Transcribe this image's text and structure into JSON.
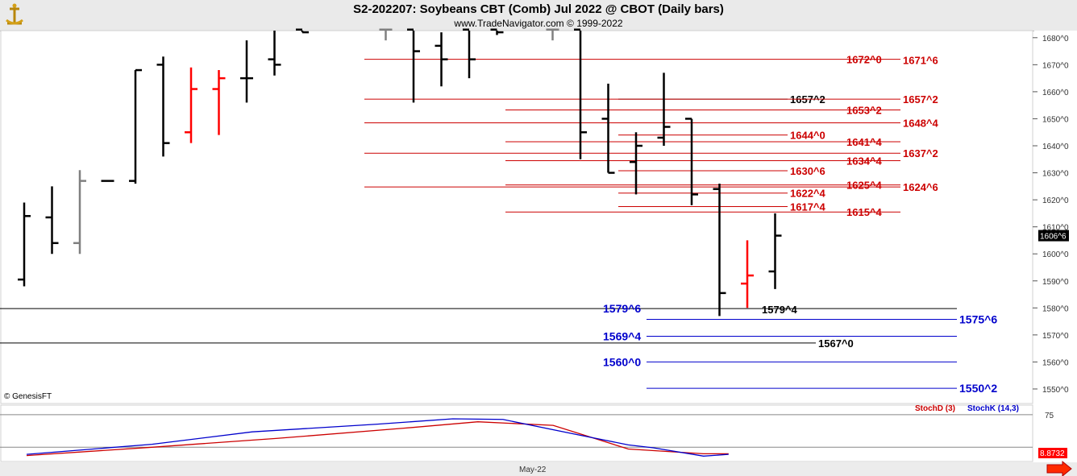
{
  "header": {
    "title": "S2-202207:  Soybeans CBT (Comb) Jul 2022 @ CBOT  (Daily bars)",
    "subtitle": "www.TradeNavigator.com © 1999-2022",
    "watermark": "© GenesisFT"
  },
  "colors": {
    "up_bar": "#000000",
    "down_bar": "#ff0000",
    "gray_bar": "#808080",
    "resistance": "#cc0000",
    "support": "#0000cc",
    "black_level": "#000000",
    "stochD": "#cc0000",
    "stochK": "#0000cc",
    "last_price_box": "#000000",
    "stoch_value_box": "#ff0000"
  },
  "chart_data": [
    {
      "type": "bar",
      "kind": "OHLC daily bars",
      "title": "S2-202207:  Soybeans CBT (Comb) Jul 2022 @ CBOT  (Daily bars)",
      "ylim": [
        1545,
        1683
      ],
      "y_ticks": [
        "1680^0",
        "1670^0",
        "1660^0",
        "1650^0",
        "1640^0",
        "1630^0",
        "1620^0",
        "1610^0",
        "1600^0",
        "1590^0",
        "1580^0",
        "1570^0",
        "1560^0",
        "1550^0"
      ],
      "y_tick_values": [
        1680,
        1670,
        1660,
        1650,
        1640,
        1630,
        1620,
        1610,
        1600,
        1590,
        1580,
        1570,
        1560,
        1550
      ],
      "last_price_label": "1606^6",
      "last_price_value": 1606.75,
      "x_label": "May-22",
      "bars": [
        {
          "i": 1,
          "high": 1619.0,
          "low": 1588.0,
          "open": 1590.5,
          "close": 1614.0,
          "color": "black"
        },
        {
          "i": 2,
          "high": 1625.0,
          "low": 1600.0,
          "open": 1613.5,
          "close": 1604.0,
          "color": "black"
        },
        {
          "i": 3,
          "high": 1631.0,
          "low": 1600.0,
          "open": 1604.0,
          "close": 1627.0,
          "color": "gray"
        },
        {
          "i": 4,
          "high": 1626.0,
          "low": 1626.0,
          "open": 1627.0,
          "close": 1627.0,
          "color": "black"
        },
        {
          "i": 5,
          "high": 1668.0,
          "low": 1626.0,
          "open": 1627.0,
          "close": 1668.0,
          "color": "black"
        },
        {
          "i": 6,
          "high": 1673.0,
          "low": 1636.0,
          "open": 1670.0,
          "close": 1641.0,
          "color": "black"
        },
        {
          "i": 7,
          "high": 1669.0,
          "low": 1641.0,
          "open": 1645.0,
          "close": 1661.0,
          "color": "red"
        },
        {
          "i": 8,
          "high": 1668.0,
          "low": 1644.0,
          "open": 1661.0,
          "close": 1665.0,
          "color": "red"
        },
        {
          "i": 9,
          "high": 1679.0,
          "low": 1656.0,
          "open": 1665.0,
          "close": 1665.0,
          "color": "black"
        },
        {
          "i": 10,
          "high": 1684.0,
          "low": 1666.0,
          "open": 1672.0,
          "close": 1670.0,
          "color": "black"
        },
        {
          "i": 11,
          "high": 1685.0,
          "low": 1682.0,
          "open": 1683.0,
          "close": 1682.0,
          "color": "black"
        },
        {
          "i": 14,
          "high": 1686.0,
          "low": 1679.0,
          "open": 1683.0,
          "close": 1683.0,
          "color": "gray"
        },
        {
          "i": 15,
          "high": 1683.0,
          "low": 1656.0,
          "open": 1683.0,
          "close": 1675.0,
          "color": "black"
        },
        {
          "i": 16,
          "high": 1682.0,
          "low": 1662.0,
          "open": 1677.0,
          "close": 1672.0,
          "color": "black"
        },
        {
          "i": 17,
          "high": 1683.0,
          "low": 1665.0,
          "open": 1683.0,
          "close": 1672.0,
          "color": "black"
        },
        {
          "i": 18,
          "high": 1684.0,
          "low": 1681.0,
          "open": 1683.0,
          "close": 1682.0,
          "color": "black"
        },
        {
          "i": 20,
          "high": 1684.0,
          "low": 1679.0,
          "open": 1683.0,
          "close": 1683.0,
          "color": "gray"
        },
        {
          "i": 21,
          "high": 1683.0,
          "low": 1635.0,
          "open": 1683.0,
          "close": 1645.0,
          "color": "black"
        },
        {
          "i": 22,
          "high": 1663.0,
          "low": 1630.0,
          "open": 1650.0,
          "close": 1630.0,
          "color": "black"
        },
        {
          "i": 23,
          "high": 1645.0,
          "low": 1622.0,
          "open": 1634.0,
          "close": 1640.0,
          "color": "black"
        },
        {
          "i": 24,
          "high": 1667.0,
          "low": 1640.0,
          "open": 1643.0,
          "close": 1647.0,
          "color": "black"
        },
        {
          "i": 25,
          "high": 1650.0,
          "low": 1618.0,
          "open": 1650.0,
          "close": 1622.0,
          "color": "black"
        },
        {
          "i": 26,
          "high": 1626.0,
          "low": 1577.0,
          "open": 1624.0,
          "close": 1585.5,
          "color": "black"
        },
        {
          "i": 27,
          "high": 1605.0,
          "low": 1580.0,
          "open": 1589.0,
          "close": 1592.0,
          "color": "red"
        },
        {
          "i": 28,
          "high": 1615.0,
          "low": 1587.0,
          "open": 1593.5,
          "close": 1606.75,
          "color": "black"
        }
      ],
      "levels": [
        {
          "label": "1672^0",
          "value": 1672.0,
          "color": "resistance",
          "line": "full"
        },
        {
          "label": "1671^6",
          "value": 1671.75,
          "color": "resistance",
          "line": "none"
        },
        {
          "label": "1657^2",
          "value": 1657.25,
          "color": "black_level",
          "line": "short"
        },
        {
          "label": "1657^2",
          "value": 1657.25,
          "color": "resistance",
          "line": "full"
        },
        {
          "label": "1653^2",
          "value": 1653.25,
          "color": "resistance",
          "line": "mid"
        },
        {
          "label": "1648^4",
          "value": 1648.5,
          "color": "resistance",
          "line": "full"
        },
        {
          "label": "1644^0",
          "value": 1644.0,
          "color": "resistance",
          "line": "short"
        },
        {
          "label": "1641^4",
          "value": 1641.5,
          "color": "resistance",
          "line": "mid"
        },
        {
          "label": "1637^2",
          "value": 1637.25,
          "color": "resistance",
          "line": "full"
        },
        {
          "label": "1634^4",
          "value": 1634.5,
          "color": "resistance",
          "line": "mid"
        },
        {
          "label": "1630^6",
          "value": 1630.75,
          "color": "resistance",
          "line": "short"
        },
        {
          "label": "1625^4",
          "value": 1625.5,
          "color": "resistance",
          "line": "mid"
        },
        {
          "label": "1624^6",
          "value": 1624.75,
          "color": "resistance",
          "line": "full"
        },
        {
          "label": "1622^4",
          "value": 1622.5,
          "color": "resistance",
          "line": "short"
        },
        {
          "label": "1617^4",
          "value": 1617.5,
          "color": "resistance",
          "line": "short"
        },
        {
          "label": "1615^4",
          "value": 1615.5,
          "color": "resistance",
          "line": "mid"
        },
        {
          "label": "1579^6",
          "value": 1579.75,
          "color": "support",
          "line": "left"
        },
        {
          "label": "1579^4",
          "value": 1579.5,
          "color": "black_level",
          "line": "none"
        },
        {
          "label": "1575^6",
          "value": 1575.75,
          "color": "support",
          "line": "right"
        },
        {
          "label": "1569^4",
          "value": 1569.5,
          "color": "support",
          "line": "right"
        },
        {
          "label": "1567^0",
          "value": 1567.0,
          "color": "black_level",
          "line": "left"
        },
        {
          "label": "1560^0",
          "value": 1560.0,
          "color": "support",
          "line": "right"
        },
        {
          "label": "1550^2",
          "value": 1550.25,
          "color": "support",
          "line": "right"
        }
      ]
    },
    {
      "type": "line",
      "kind": "stochastic oscillator",
      "legend": [
        "StochD (3)",
        "StochK (14,3)"
      ],
      "y_tick_labels": [
        "75"
      ],
      "y_tick_values": [
        75
      ],
      "ylim": [
        0,
        100
      ],
      "value_box": "8.8732",
      "series": [
        {
          "name": "StochD (3)",
          "color": "stochD",
          "values": [
            [
              0,
              6
            ],
            [
              5,
              20
            ],
            [
              10,
              35
            ],
            [
              15,
              52
            ],
            [
              18,
              63
            ],
            [
              21,
              57
            ],
            [
              24,
              17
            ],
            [
              27,
              9
            ],
            [
              28,
              9
            ]
          ]
        },
        {
          "name": "StochK (14,3)",
          "color": "stochK",
          "values": [
            [
              0,
              8
            ],
            [
              5,
              25
            ],
            [
              9,
              46
            ],
            [
              14,
              59
            ],
            [
              17,
              68
            ],
            [
              19,
              67
            ],
            [
              22,
              41
            ],
            [
              24,
              24
            ],
            [
              25,
              19
            ],
            [
              27,
              5
            ],
            [
              28,
              8
            ]
          ]
        }
      ]
    }
  ]
}
